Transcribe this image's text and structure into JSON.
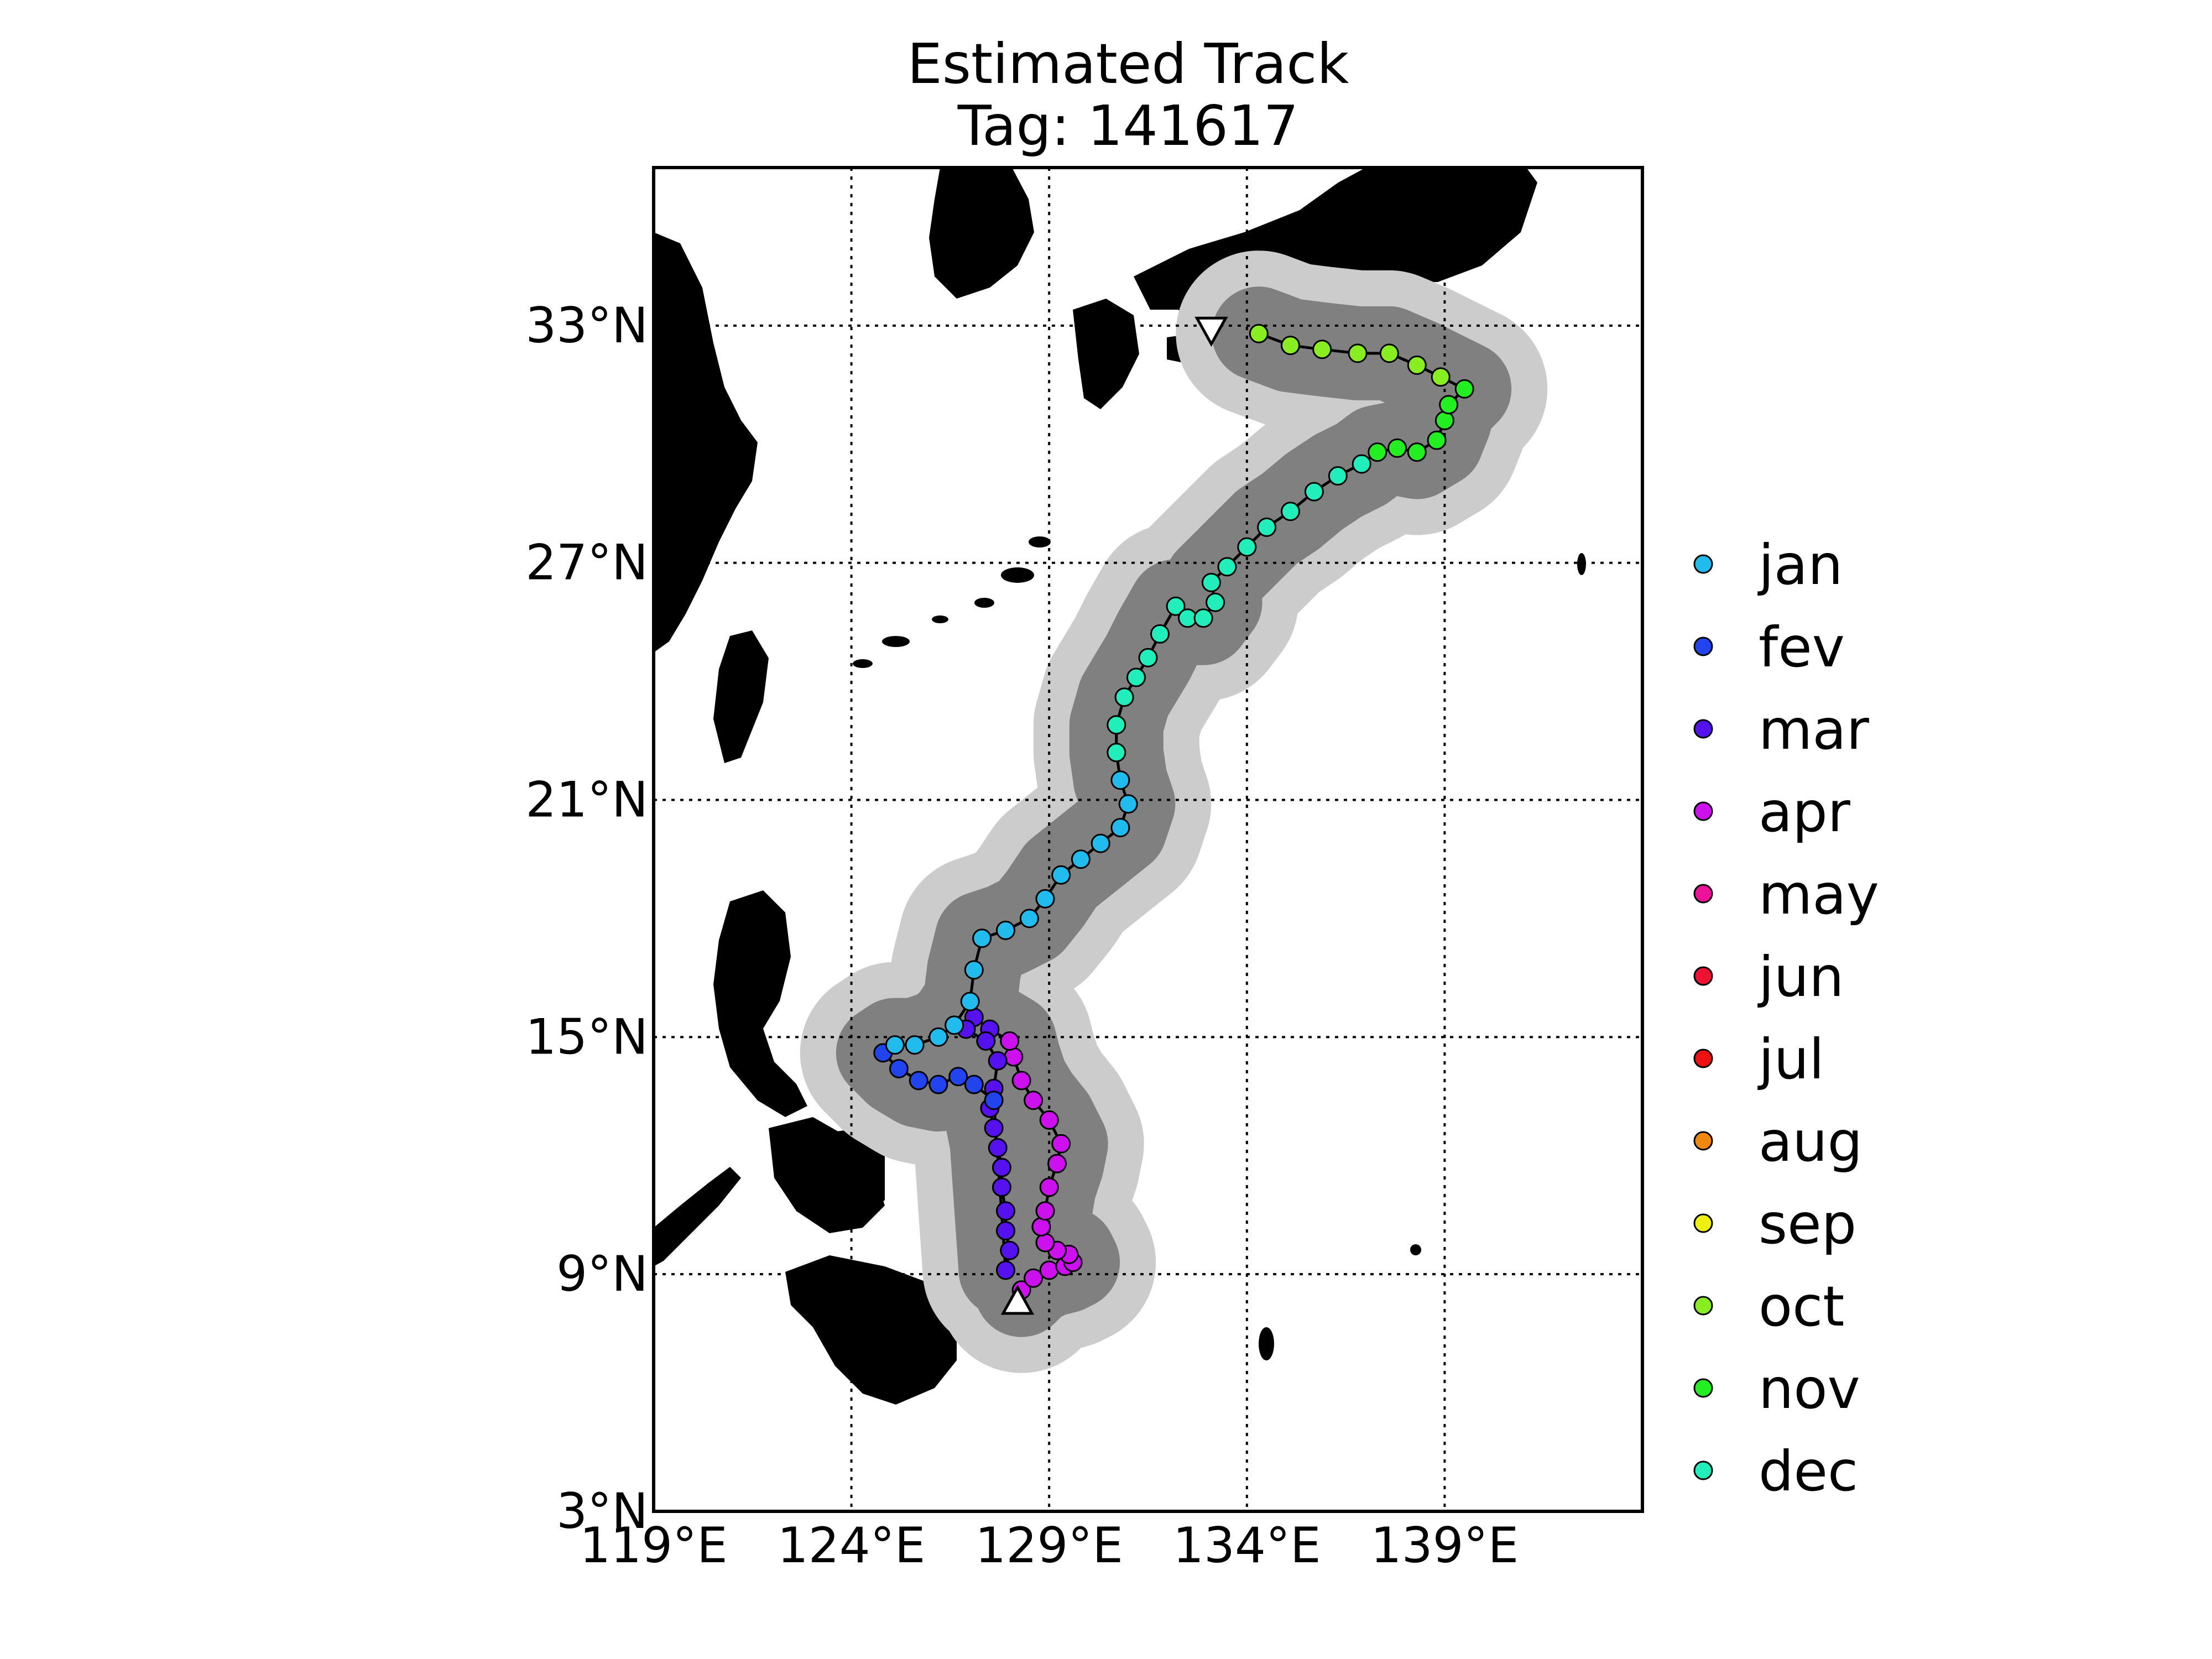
{
  "title": {
    "line1": "Estimated Track",
    "line2": "Tag: 141617"
  },
  "map": {
    "lon_range": [
      119,
      144
    ],
    "lat_range": [
      3,
      37
    ],
    "lat_ticks": [
      {
        "value": 33,
        "label": "33°N"
      },
      {
        "value": 27,
        "label": "27°N"
      },
      {
        "value": 21,
        "label": "21°N"
      },
      {
        "value": 15,
        "label": "15°N"
      },
      {
        "value": 9,
        "label": "9°N"
      },
      {
        "value": 3,
        "label": "3°N"
      }
    ],
    "lon_ticks": [
      {
        "value": 119,
        "label": "119°E"
      },
      {
        "value": 124,
        "label": "124°E"
      },
      {
        "value": 129,
        "label": "129°E"
      },
      {
        "value": 134,
        "label": "134°E"
      },
      {
        "value": 139,
        "label": "139°E"
      }
    ],
    "grid": true,
    "land_color": "#000000",
    "ocean_color": "#ffffff",
    "confidence_outer_color": "#cccccc",
    "confidence_inner_color": "#808080",
    "start_marker": {
      "lon": 128.2,
      "lat": 8.3,
      "symbol": "triangle-up"
    },
    "end_marker": {
      "lon": 133.1,
      "lat": 32.9,
      "symbol": "triangle-down"
    }
  },
  "legend": {
    "placement": "right",
    "entries": [
      {
        "label": "jan",
        "color": "#22bbee"
      },
      {
        "label": "fev",
        "color": "#2244ee"
      },
      {
        "label": "mar",
        "color": "#5511ee"
      },
      {
        "label": "apr",
        "color": "#cc11ee"
      },
      {
        "label": "may",
        "color": "#ee1199"
      },
      {
        "label": "jun",
        "color": "#ee1133"
      },
      {
        "label": "jul",
        "color": "#ee1111"
      },
      {
        "label": "aug",
        "color": "#ee8811"
      },
      {
        "label": "sep",
        "color": "#eeee11"
      },
      {
        "label": "oct",
        "color": "#88ee22"
      },
      {
        "label": "nov",
        "color": "#22ee22"
      },
      {
        "label": "dec",
        "color": "#22eebb"
      }
    ]
  },
  "track": [
    {
      "month": "apr",
      "lon": 128.3,
      "lat": 8.6
    },
    {
      "month": "apr",
      "lon": 128.6,
      "lat": 8.9
    },
    {
      "month": "apr",
      "lon": 129.0,
      "lat": 9.1
    },
    {
      "month": "apr",
      "lon": 129.4,
      "lat": 9.2
    },
    {
      "month": "apr",
      "lon": 129.6,
      "lat": 9.3
    },
    {
      "month": "apr",
      "lon": 129.5,
      "lat": 9.5
    },
    {
      "month": "apr",
      "lon": 129.2,
      "lat": 9.6
    },
    {
      "month": "apr",
      "lon": 128.9,
      "lat": 9.8
    },
    {
      "month": "apr",
      "lon": 128.8,
      "lat": 10.2
    },
    {
      "month": "apr",
      "lon": 128.9,
      "lat": 10.6
    },
    {
      "month": "apr",
      "lon": 129.0,
      "lat": 11.2
    },
    {
      "month": "apr",
      "lon": 129.2,
      "lat": 11.8
    },
    {
      "month": "apr",
      "lon": 129.3,
      "lat": 12.3
    },
    {
      "month": "apr",
      "lon": 129.0,
      "lat": 12.9
    },
    {
      "month": "apr",
      "lon": 128.6,
      "lat": 13.4
    },
    {
      "month": "apr",
      "lon": 128.3,
      "lat": 13.9
    },
    {
      "month": "apr",
      "lon": 128.1,
      "lat": 14.5
    },
    {
      "month": "apr",
      "lon": 128.0,
      "lat": 14.9
    },
    {
      "month": "mar",
      "lon": 127.5,
      "lat": 15.2
    },
    {
      "month": "mar",
      "lon": 127.1,
      "lat": 15.5
    },
    {
      "month": "mar",
      "lon": 126.9,
      "lat": 15.2
    },
    {
      "month": "mar",
      "lon": 127.4,
      "lat": 14.9
    },
    {
      "month": "mar",
      "lon": 127.7,
      "lat": 14.4
    },
    {
      "month": "mar",
      "lon": 127.6,
      "lat": 13.7
    },
    {
      "month": "mar",
      "lon": 127.5,
      "lat": 13.2
    },
    {
      "month": "mar",
      "lon": 127.6,
      "lat": 12.7
    },
    {
      "month": "mar",
      "lon": 127.7,
      "lat": 12.2
    },
    {
      "month": "mar",
      "lon": 127.8,
      "lat": 11.7
    },
    {
      "month": "mar",
      "lon": 127.8,
      "lat": 11.2
    },
    {
      "month": "mar",
      "lon": 127.9,
      "lat": 10.6
    },
    {
      "month": "mar",
      "lon": 127.9,
      "lat": 10.1
    },
    {
      "month": "mar",
      "lon": 128.0,
      "lat": 9.6
    },
    {
      "month": "mar",
      "lon": 127.9,
      "lat": 9.1
    },
    {
      "month": "fev",
      "lon": 127.6,
      "lat": 13.4
    },
    {
      "month": "fev",
      "lon": 127.1,
      "lat": 13.8
    },
    {
      "month": "fev",
      "lon": 126.7,
      "lat": 14.0
    },
    {
      "month": "fev",
      "lon": 126.2,
      "lat": 13.8
    },
    {
      "month": "fev",
      "lon": 125.7,
      "lat": 13.9
    },
    {
      "month": "fev",
      "lon": 125.2,
      "lat": 14.2
    },
    {
      "month": "fev",
      "lon": 124.8,
      "lat": 14.6
    },
    {
      "month": "jan",
      "lon": 125.1,
      "lat": 14.8
    },
    {
      "month": "jan",
      "lon": 125.6,
      "lat": 14.8
    },
    {
      "month": "jan",
      "lon": 126.2,
      "lat": 15.0
    },
    {
      "month": "jan",
      "lon": 126.6,
      "lat": 15.3
    },
    {
      "month": "jan",
      "lon": 127.0,
      "lat": 15.9
    },
    {
      "month": "jan",
      "lon": 127.1,
      "lat": 16.7
    },
    {
      "month": "jan",
      "lon": 127.3,
      "lat": 17.5
    },
    {
      "month": "jan",
      "lon": 127.9,
      "lat": 17.7
    },
    {
      "month": "jan",
      "lon": 128.5,
      "lat": 18.0
    },
    {
      "month": "jan",
      "lon": 128.9,
      "lat": 18.5
    },
    {
      "month": "jan",
      "lon": 129.3,
      "lat": 19.1
    },
    {
      "month": "jan",
      "lon": 129.8,
      "lat": 19.5
    },
    {
      "month": "jan",
      "lon": 130.3,
      "lat": 19.9
    },
    {
      "month": "jan",
      "lon": 130.8,
      "lat": 20.3
    },
    {
      "month": "jan",
      "lon": 131.0,
      "lat": 20.9
    },
    {
      "month": "jan",
      "lon": 130.8,
      "lat": 21.5
    },
    {
      "month": "dec",
      "lon": 130.7,
      "lat": 22.2
    },
    {
      "month": "dec",
      "lon": 130.7,
      "lat": 22.9
    },
    {
      "month": "dec",
      "lon": 130.9,
      "lat": 23.6
    },
    {
      "month": "dec",
      "lon": 131.2,
      "lat": 24.1
    },
    {
      "month": "dec",
      "lon": 131.5,
      "lat": 24.6
    },
    {
      "month": "dec",
      "lon": 131.8,
      "lat": 25.2
    },
    {
      "month": "dec",
      "lon": 132.2,
      "lat": 25.9
    },
    {
      "month": "dec",
      "lon": 132.5,
      "lat": 25.6
    },
    {
      "month": "dec",
      "lon": 132.9,
      "lat": 25.6
    },
    {
      "month": "dec",
      "lon": 133.2,
      "lat": 26.0
    },
    {
      "month": "dec",
      "lon": 133.1,
      "lat": 26.5
    },
    {
      "month": "dec",
      "lon": 133.5,
      "lat": 26.9
    },
    {
      "month": "dec",
      "lon": 134.0,
      "lat": 27.4
    },
    {
      "month": "dec",
      "lon": 134.5,
      "lat": 27.9
    },
    {
      "month": "dec",
      "lon": 135.1,
      "lat": 28.3
    },
    {
      "month": "dec",
      "lon": 135.7,
      "lat": 28.8
    },
    {
      "month": "dec",
      "lon": 136.3,
      "lat": 29.2
    },
    {
      "month": "dec",
      "lon": 136.9,
      "lat": 29.5
    },
    {
      "month": "nov",
      "lon": 137.3,
      "lat": 29.8
    },
    {
      "month": "nov",
      "lon": 137.8,
      "lat": 29.9
    },
    {
      "month": "nov",
      "lon": 138.3,
      "lat": 29.8
    },
    {
      "month": "nov",
      "lon": 138.8,
      "lat": 30.1
    },
    {
      "month": "nov",
      "lon": 139.0,
      "lat": 30.6
    },
    {
      "month": "nov",
      "lon": 139.1,
      "lat": 31.0
    },
    {
      "month": "nov",
      "lon": 139.5,
      "lat": 31.4
    },
    {
      "month": "oct",
      "lon": 138.9,
      "lat": 31.7
    },
    {
      "month": "oct",
      "lon": 138.3,
      "lat": 32.0
    },
    {
      "month": "oct",
      "lon": 137.6,
      "lat": 32.3
    },
    {
      "month": "oct",
      "lon": 136.8,
      "lat": 32.3
    },
    {
      "month": "oct",
      "lon": 135.9,
      "lat": 32.4
    },
    {
      "month": "oct",
      "lon": 135.1,
      "lat": 32.5
    },
    {
      "month": "oct",
      "lon": 134.3,
      "lat": 32.8
    }
  ]
}
